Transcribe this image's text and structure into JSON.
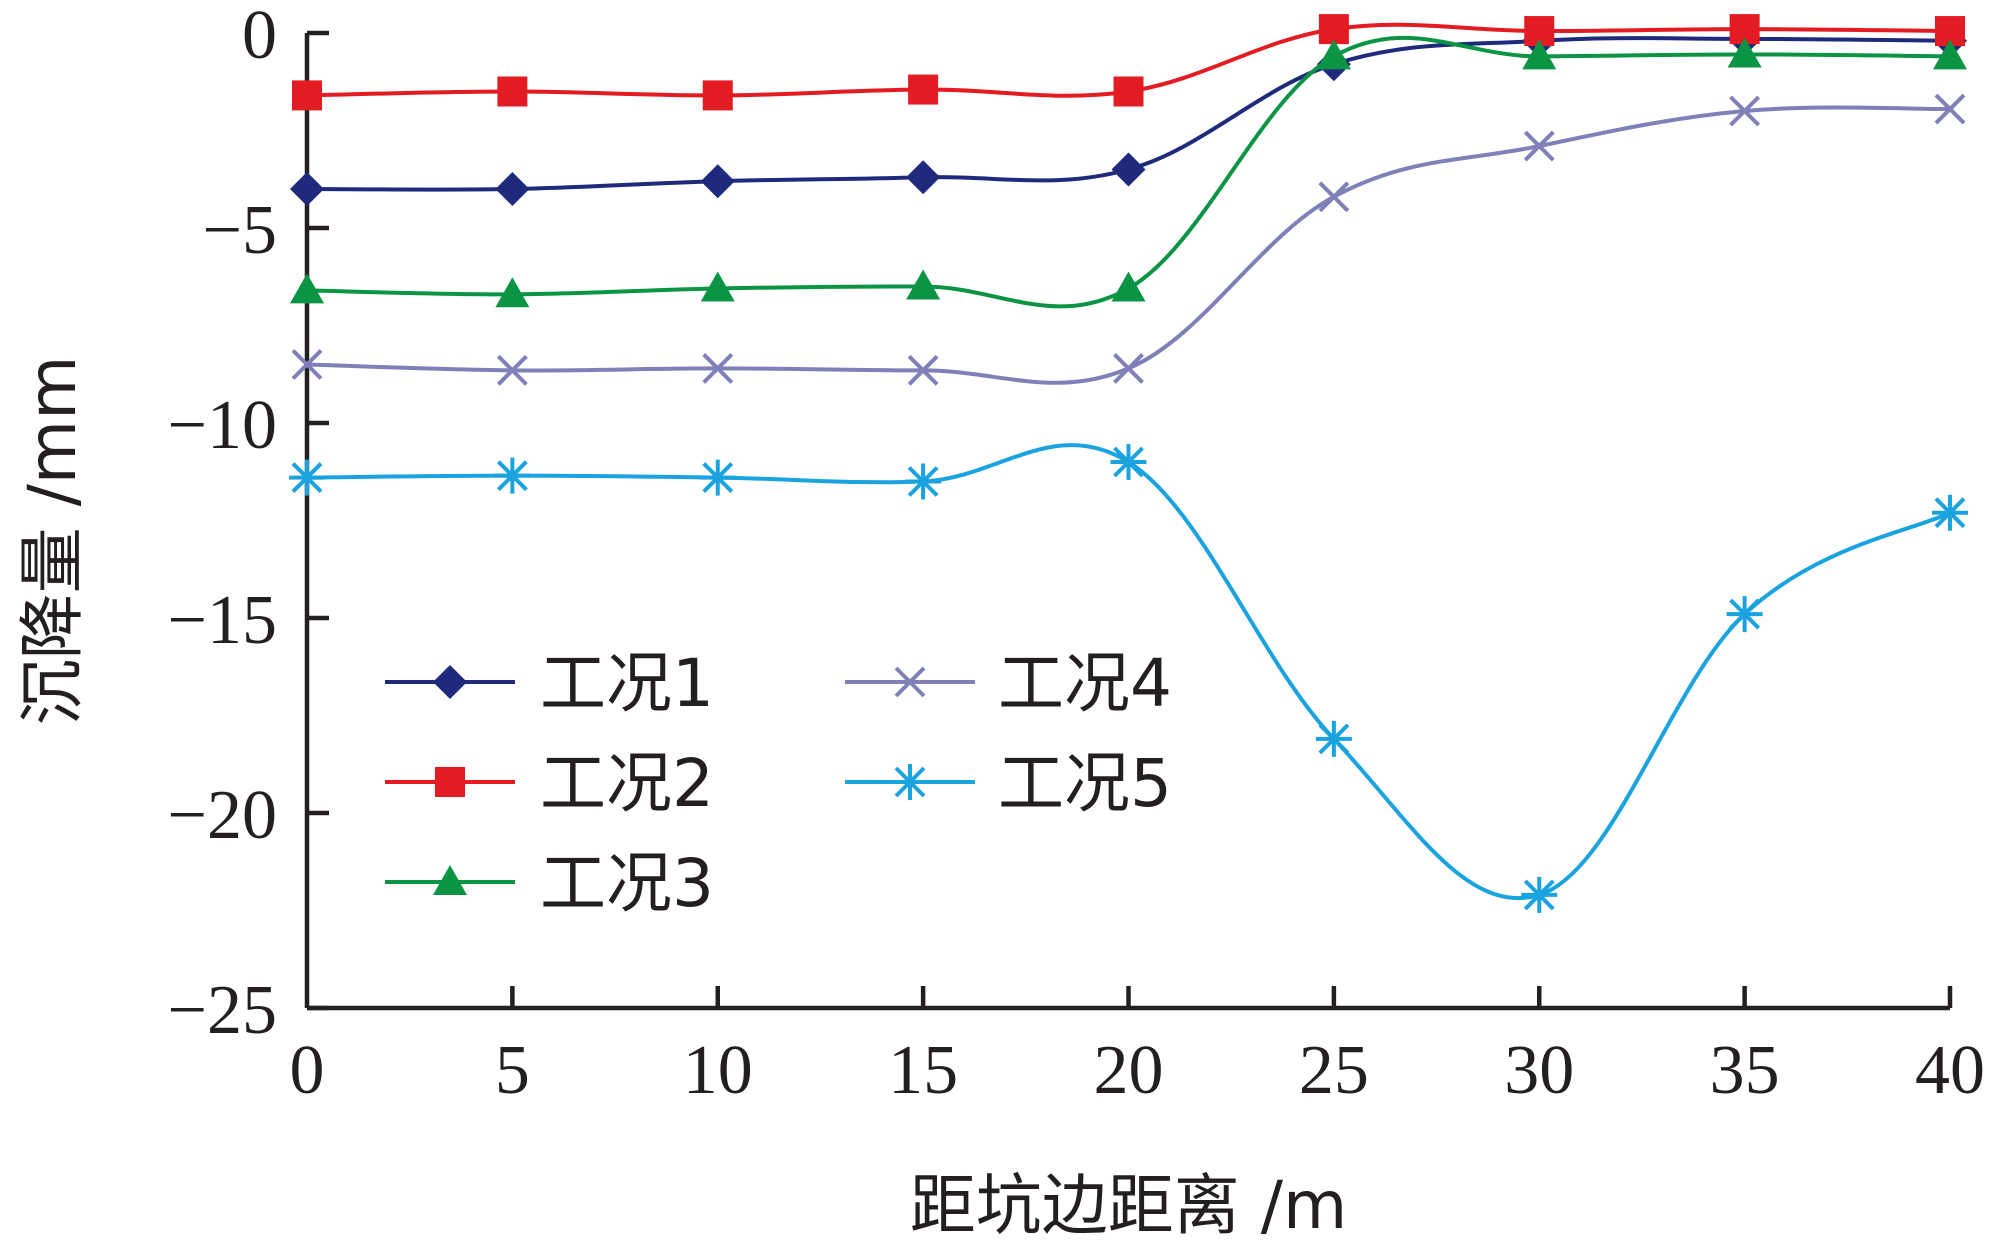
{
  "chart_data": {
    "type": "line",
    "title": "",
    "xlabel": "距坑边距离 /m",
    "ylabel": "沉降量 /mm",
    "x": [
      0,
      5,
      10,
      15,
      20,
      25,
      30,
      35,
      40
    ],
    "xlim": [
      0,
      40
    ],
    "ylim": [
      -25,
      0
    ],
    "x_ticks": [
      0,
      5,
      10,
      15,
      20,
      25,
      30,
      35,
      40
    ],
    "y_ticks": [
      0,
      -5,
      -10,
      -15,
      -20,
      -25
    ],
    "x_tick_labels": [
      "0",
      "5",
      "10",
      "15",
      "20",
      "25",
      "30",
      "35",
      "40"
    ],
    "y_tick_labels": [
      "0",
      "−5",
      "−10",
      "−15",
      "−20",
      "−25"
    ],
    "grid": false,
    "legend_position": "lower-left",
    "series": [
      {
        "name": "工况1",
        "color": "#1f2a7c",
        "marker": "diamond",
        "values": [
          -4.0,
          -4.0,
          -3.8,
          -3.7,
          -3.5,
          -0.8,
          -0.2,
          -0.15,
          -0.2
        ]
      },
      {
        "name": "工况2",
        "color": "#e31b23",
        "marker": "square",
        "values": [
          -1.6,
          -1.5,
          -1.6,
          -1.45,
          -1.5,
          0.1,
          0.05,
          0.1,
          0.05
        ]
      },
      {
        "name": "工况3",
        "color": "#0b9444",
        "marker": "triangle",
        "values": [
          -6.6,
          -6.7,
          -6.55,
          -6.5,
          -6.55,
          -0.6,
          -0.6,
          -0.55,
          -0.6
        ]
      },
      {
        "name": "工况4",
        "color": "#8080b8",
        "marker": "x",
        "values": [
          -8.5,
          -8.65,
          -8.6,
          -8.65,
          -8.6,
          -4.2,
          -2.9,
          -2.0,
          -1.95
        ]
      },
      {
        "name": "工况5",
        "color": "#1aa3df",
        "marker": "asterisk",
        "values": [
          -11.4,
          -11.35,
          -11.4,
          -11.5,
          -11.0,
          -18.1,
          -22.1,
          -14.9,
          -12.3
        ]
      }
    ]
  }
}
